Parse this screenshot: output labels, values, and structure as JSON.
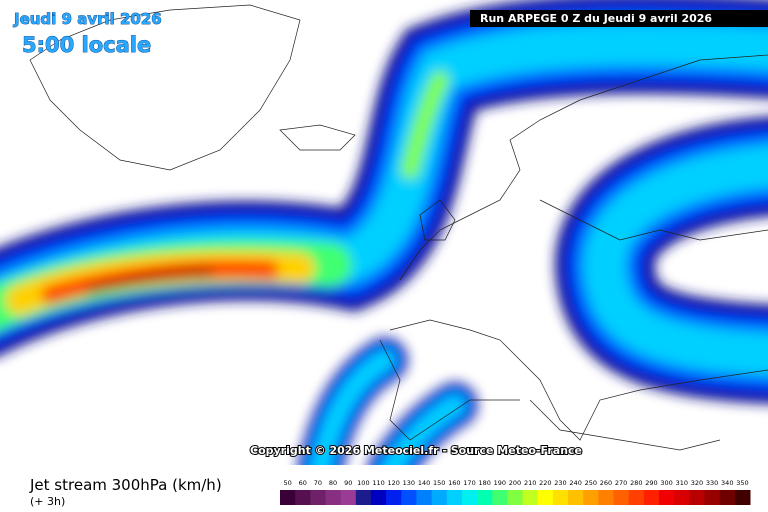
{
  "header": {
    "date": "Jeudi 9 avril 2026",
    "time": "5:00 locale",
    "run": "Run ARPEGE 0 Z du Jeudi 9 avril 2026"
  },
  "copyright": "Copyright © 2026 Meteociel.fr - Source Meteo-France",
  "footer": {
    "title": "Jet stream 300hPa (km/h)",
    "lead": "(+ 3h)"
  },
  "legend": {
    "ticks": [
      50,
      60,
      70,
      80,
      90,
      100,
      110,
      120,
      130,
      140,
      150,
      160,
      170,
      180,
      190,
      200,
      210,
      220,
      230,
      240,
      250,
      260,
      270,
      280,
      290,
      300,
      310,
      320,
      330,
      340,
      350
    ],
    "colors": [
      "#3a0038",
      "#55104f",
      "#6e2068",
      "#872f80",
      "#9a3c96",
      "#1c1c8c",
      "#0000c0",
      "#0020f0",
      "#0050ff",
      "#0080ff",
      "#00aaff",
      "#00d0ff",
      "#00f0f0",
      "#00ffb0",
      "#40ff70",
      "#80ff40",
      "#c0ff20",
      "#ffff00",
      "#ffe000",
      "#ffc000",
      "#ffa000",
      "#ff8000",
      "#ff6000",
      "#ff4000",
      "#ff2000",
      "#f00000",
      "#d80000",
      "#b80000",
      "#980000",
      "#700000",
      "#400000"
    ]
  }
}
